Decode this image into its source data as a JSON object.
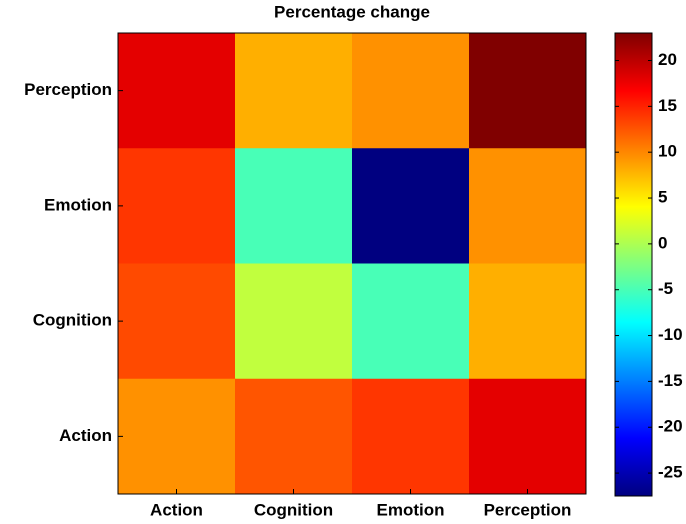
{
  "chart_data": {
    "type": "heatmap",
    "title": "Percentage change",
    "x_categories": [
      "Action",
      "Cognition",
      "Emotion",
      "Perception"
    ],
    "y_categories": [
      "Perception",
      "Emotion",
      "Cognition",
      "Action"
    ],
    "values": [
      [
        18,
        8,
        9.5,
        23
      ],
      [
        14,
        -5,
        -27.5,
        9.5
      ],
      [
        13,
        1,
        -5,
        8
      ],
      [
        9.5,
        12.5,
        14,
        18
      ]
    ],
    "colormap": "jet",
    "clim": [
      -27.5,
      23
    ],
    "colorbar_ticks": [
      20,
      15,
      10,
      5,
      0,
      -5,
      -10,
      -15,
      -20,
      -25
    ]
  }
}
